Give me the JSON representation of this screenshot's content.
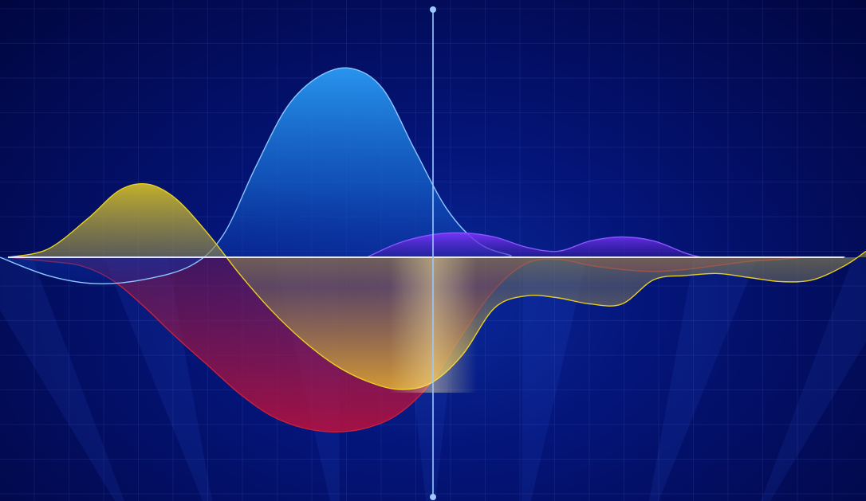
{
  "chart_data": {
    "type": "area",
    "title": "",
    "xlabel": "",
    "ylabel": "",
    "grid": true,
    "legend": "none",
    "xlim": [
      0,
      1086
    ],
    "ylim": [
      -1.0,
      1.0
    ],
    "cursor_x": 543,
    "colors": {
      "background": "#03106a",
      "zero_line": "#dfe8ff",
      "cursor": "#9cc8ff",
      "blue": "#1e8ef0",
      "yellow": "#d8c020",
      "red": "#d0203a",
      "purple": "#6a2ef0"
    },
    "series": [
      {
        "key": "blue",
        "x": [
          0,
          60,
          120,
          180,
          240,
          280,
          320,
          360,
          400,
          440,
          480,
          520,
          560,
          600,
          640,
          660,
          1060
        ],
        "values": [
          0.0,
          -0.09,
          -0.13,
          -0.11,
          -0.04,
          0.11,
          0.44,
          0.74,
          0.89,
          0.93,
          0.83,
          0.53,
          0.24,
          0.07,
          0.01,
          0.0,
          0.0
        ]
      },
      {
        "key": "yellow",
        "x": [
          10,
          60,
          110,
          150,
          185,
          220,
          260,
          300,
          340,
          380,
          420,
          460,
          500,
          540,
          580,
          620,
          660,
          700,
          740,
          780,
          820,
          860,
          900,
          940,
          980,
          1020,
          1060,
          1086
        ],
        "values": [
          0.0,
          0.04,
          0.19,
          0.33,
          0.36,
          0.29,
          0.12,
          -0.08,
          -0.26,
          -0.41,
          -0.53,
          -0.61,
          -0.65,
          -0.62,
          -0.48,
          -0.25,
          -0.19,
          -0.2,
          -0.23,
          -0.23,
          -0.11,
          -0.09,
          -0.08,
          -0.1,
          -0.12,
          -0.11,
          -0.04,
          0.03
        ]
      },
      {
        "key": "red",
        "x": [
          10,
          60,
          100,
          140,
          180,
          220,
          260,
          300,
          340,
          380,
          420,
          460,
          500,
          540,
          580,
          620,
          660,
          700,
          740,
          780,
          820,
          860,
          900,
          940,
          980,
          1010
        ],
        "values": [
          0.0,
          -0.02,
          -0.04,
          -0.11,
          -0.24,
          -0.39,
          -0.53,
          -0.67,
          -0.78,
          -0.84,
          -0.86,
          -0.84,
          -0.77,
          -0.62,
          -0.38,
          -0.16,
          -0.03,
          -0.01,
          -0.04,
          -0.06,
          -0.07,
          -0.06,
          -0.04,
          -0.02,
          -0.01,
          0.0
        ]
      },
      {
        "key": "purple",
        "x": [
          460,
          500,
          540,
          580,
          620,
          660,
          700,
          740,
          780,
          820,
          860,
          880
        ],
        "values": [
          0.0,
          0.07,
          0.11,
          0.12,
          0.1,
          0.05,
          0.03,
          0.08,
          0.1,
          0.08,
          0.02,
          0.0
        ]
      }
    ]
  }
}
